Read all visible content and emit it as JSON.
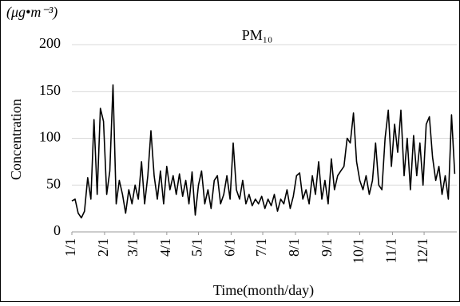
{
  "chart_data": {
    "type": "line",
    "title": "PM₁₀",
    "unit_label": "(μg•m⁻³)",
    "y_label": "Concentration",
    "x_label": "Time(month/day)",
    "xlim": [
      1,
      366
    ],
    "ylim": [
      0,
      200
    ],
    "yticks": [
      0,
      50,
      100,
      150,
      200
    ],
    "grid": true,
    "xticks": [
      {
        "value": 1,
        "label": "1/1"
      },
      {
        "value": 32,
        "label": "2/1"
      },
      {
        "value": 60,
        "label": "3/1"
      },
      {
        "value": 91,
        "label": "4/1"
      },
      {
        "value": 121,
        "label": "5/1"
      },
      {
        "value": 152,
        "label": "6/1"
      },
      {
        "value": 182,
        "label": "7/1"
      },
      {
        "value": 213,
        "label": "8/1"
      },
      {
        "value": 244,
        "label": "9/1"
      },
      {
        "value": 274,
        "label": "10/1"
      },
      {
        "value": 305,
        "label": "11/1"
      },
      {
        "value": 335,
        "label": "12/1"
      }
    ],
    "x": [
      1,
      4,
      7,
      10,
      13,
      16,
      19,
      22,
      25,
      28,
      31,
      34,
      37,
      40,
      43,
      46,
      49,
      52,
      55,
      58,
      61,
      64,
      67,
      70,
      73,
      76,
      79,
      82,
      85,
      88,
      91,
      94,
      97,
      100,
      103,
      106,
      109,
      112,
      115,
      118,
      121,
      124,
      127,
      130,
      133,
      136,
      139,
      142,
      145,
      148,
      151,
      154,
      157,
      160,
      163,
      166,
      169,
      172,
      175,
      178,
      181,
      184,
      187,
      190,
      193,
      196,
      199,
      202,
      205,
      208,
      211,
      214,
      217,
      220,
      223,
      226,
      229,
      232,
      235,
      238,
      241,
      244,
      247,
      250,
      253,
      256,
      259,
      262,
      265,
      268,
      271,
      274,
      277,
      280,
      283,
      286,
      289,
      292,
      295,
      298,
      301,
      304,
      307,
      310,
      313,
      316,
      319,
      322,
      325,
      328,
      331,
      334,
      337,
      340,
      343,
      346,
      349,
      352,
      355,
      358,
      361,
      364
    ],
    "series": [
      {
        "name": "PM10",
        "color": "#000000",
        "values": [
          33,
          35,
          20,
          15,
          22,
          58,
          35,
          120,
          40,
          132,
          118,
          40,
          65,
          157,
          30,
          55,
          40,
          20,
          45,
          30,
          50,
          35,
          75,
          30,
          60,
          108,
          60,
          35,
          65,
          30,
          70,
          45,
          60,
          40,
          62,
          38,
          55,
          30,
          64,
          18,
          50,
          65,
          30,
          45,
          25,
          55,
          60,
          30,
          40,
          60,
          35,
          95,
          45,
          35,
          55,
          30,
          40,
          28,
          35,
          30,
          38,
          25,
          35,
          28,
          40,
          22,
          35,
          30,
          45,
          25,
          38,
          60,
          63,
          35,
          45,
          30,
          60,
          40,
          75,
          35,
          55,
          30,
          78,
          45,
          60,
          65,
          70,
          100,
          95,
          127,
          75,
          55,
          45,
          60,
          40,
          55,
          95,
          50,
          45,
          100,
          130,
          70,
          115,
          85,
          130,
          60,
          100,
          45,
          103,
          60,
          95,
          50,
          115,
          123,
          80,
          55,
          70,
          40,
          60,
          35,
          125,
          62
        ]
      }
    ]
  }
}
